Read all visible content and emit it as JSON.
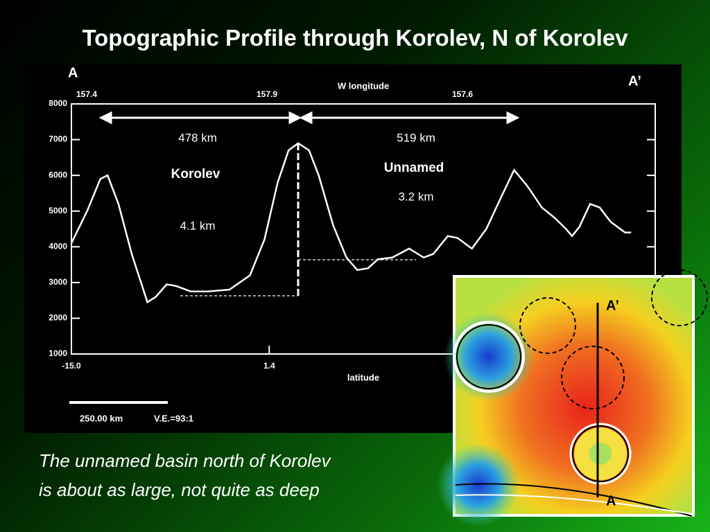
{
  "title": "Topographic Profile through Korolev, N of Korolev",
  "caption": [
    "The unnamed basin north of Korolev",
    "is about as large, not quite as deep"
  ],
  "map_labels": [
    "A’",
    "A"
  ],
  "chart_data": {
    "type": "line",
    "x_label": "latitude",
    "top_axis": {
      "label": "W longitude",
      "ticks": [
        "157.4",
        "157.9",
        "157.6"
      ]
    },
    "annotations": [
      "478 km",
      "519 km",
      "Korolev",
      "Unnamed",
      "4.1 km",
      "3.2 km",
      "A",
      "A’",
      "250.00 km",
      "V.E.=93:1"
    ],
    "xlim": [
      -15,
      33.4
    ],
    "xticks": [
      {
        "value": -15,
        "label": "-15.0"
      },
      1.4
    ],
    "ylim": [
      1000,
      8000
    ],
    "yticks": [
      1000,
      2000,
      3000,
      4000,
      5000,
      6000,
      7000,
      8000
    ],
    "series": [
      {
        "color": "#ffffff",
        "x": [
          -15.0,
          -13.7,
          -12.6,
          -12.0,
          -11.1,
          -10.0,
          -8.7,
          -8.0,
          -7.1,
          -6.3,
          -5.1,
          -3.7,
          -1.9,
          -0.2,
          1.0,
          2.1,
          3.0,
          3.8,
          4.7,
          5.5,
          6.7,
          7.8,
          8.7,
          9.6,
          10.4,
          11.6,
          13.0,
          14.2,
          15.0,
          16.2,
          17.0,
          18.2,
          19.4,
          20.5,
          21.7,
          22.8,
          24.0,
          25.1,
          26.0,
          26.5,
          27.1,
          28.0,
          28.8,
          29.7,
          30.9,
          31.4
        ],
        "values": [
          4100,
          5000,
          5900,
          6000,
          5200,
          3800,
          2450,
          2600,
          2950,
          2900,
          2750,
          2750,
          2800,
          3200,
          4200,
          5800,
          6700,
          6900,
          6700,
          6000,
          4600,
          3700,
          3350,
          3400,
          3650,
          3700,
          3950,
          3700,
          3800,
          4300,
          4250,
          3950,
          4500,
          5300,
          6150,
          5700,
          5100,
          4800,
          4500,
          4300,
          4550,
          5200,
          5100,
          4700,
          4400,
          4400
        ]
      }
    ]
  }
}
